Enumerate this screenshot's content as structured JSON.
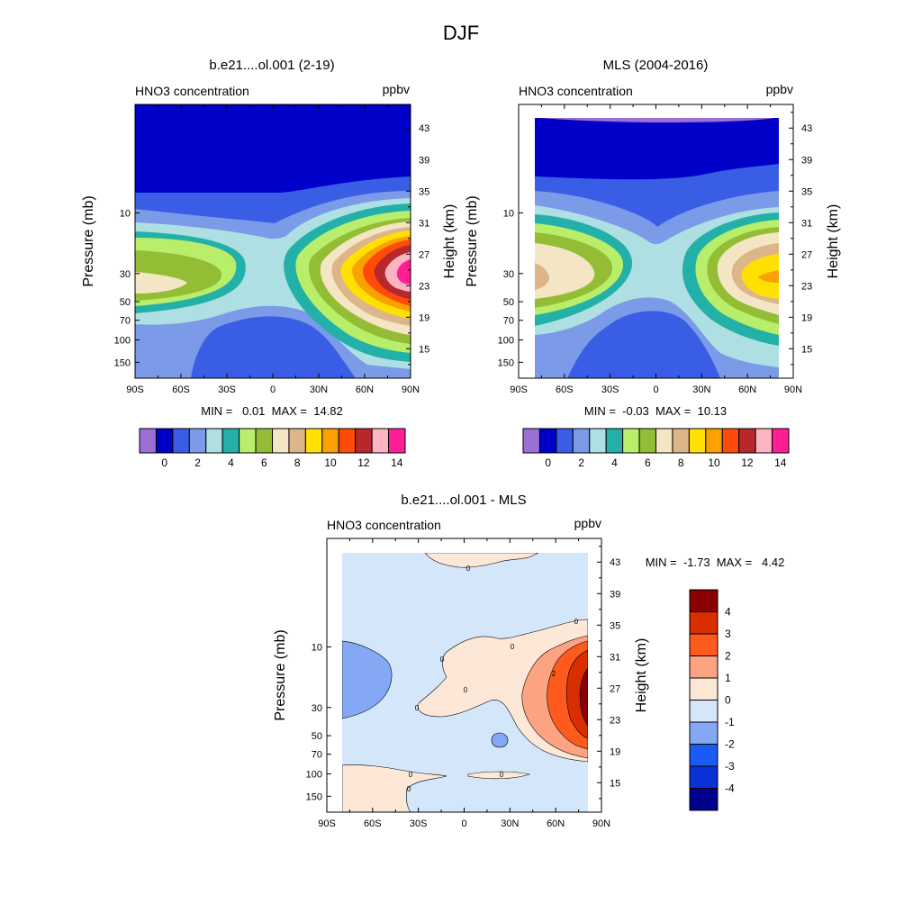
{
  "figure": {
    "title": "DJF"
  },
  "chart_data": [
    {
      "type": "heatmap",
      "title": "b.e21....ol.001 (2-19)",
      "left_label": "HNO3 concentration",
      "units": "ppbv",
      "ylabel": "Pressure (mb)",
      "ylabel_right": "Height (km)",
      "x_ticks": [
        "90S",
        "60S",
        "30S",
        "0",
        "30N",
        "60N",
        "90N"
      ],
      "y_ticks": [
        "10",
        "30",
        "50",
        "70",
        "100",
        "150"
      ],
      "y_ticks_right": [
        "43",
        "39",
        "35",
        "31",
        "27",
        "23",
        "19",
        "15"
      ],
      "stats": "MIN =   0.01  MAX =  14.82",
      "colorbar": {
        "labels": [
          "0",
          "2",
          "4",
          "6",
          "8",
          "10",
          "12",
          "14"
        ],
        "colors": [
          "#9b6fd6",
          "#0000c8",
          "#3a5de6",
          "#7b9be8",
          "#aee0e3",
          "#23b0a8",
          "#b9ee6a",
          "#93bd35",
          "#f4e5c4",
          "#dcb688",
          "#ffe000",
          "#f9a100",
          "#ff4b0a",
          "#b8282b",
          "#fcb4c3",
          "#ff1e96"
        ]
      },
      "bands": [
        {
          "level": 0,
          "color": "#0000c8"
        },
        {
          "level": 1,
          "color": "#3a5de6"
        },
        {
          "level": 2,
          "color": "#7b9be8"
        },
        {
          "level": 3,
          "color": "#aee0e3"
        },
        {
          "level": 4,
          "color": "#23b0a8"
        },
        {
          "level": 5,
          "color": "#b9ee6a"
        },
        {
          "level": 6,
          "color": "#93bd35"
        },
        {
          "level": 7,
          "color": "#f4e5c4"
        },
        {
          "level": 8,
          "color": "#dcb688"
        },
        {
          "level": 9,
          "color": "#ffe000"
        },
        {
          "level": 10,
          "color": "#f9a100"
        },
        {
          "level": 11,
          "color": "#ff4b0a"
        },
        {
          "level": 12,
          "color": "#b8282b"
        },
        {
          "level": 13,
          "color": "#fcb4c3"
        },
        {
          "level": 14,
          "color": "#ff1e96"
        }
      ]
    },
    {
      "type": "heatmap",
      "title": "MLS (2004-2016)",
      "left_label": "HNO3 concentration",
      "units": "ppbv",
      "ylabel": "Pressure (mb)",
      "ylabel_right": "Height (km)",
      "x_ticks": [
        "90S",
        "60S",
        "30S",
        "0",
        "30N",
        "60N",
        "90N"
      ],
      "y_ticks": [
        "10",
        "30",
        "50",
        "70",
        "100",
        "150"
      ],
      "y_ticks_right": [
        "43",
        "39",
        "35",
        "31",
        "27",
        "23",
        "19",
        "15"
      ],
      "stats": "MIN =  -0.03  MAX =  10.13",
      "colorbar": {
        "labels": [
          "0",
          "2",
          "4",
          "6",
          "8",
          "10",
          "12",
          "14"
        ],
        "colors": [
          "#9b6fd6",
          "#0000c8",
          "#3a5de6",
          "#7b9be8",
          "#aee0e3",
          "#23b0a8",
          "#b9ee6a",
          "#93bd35",
          "#f4e5c4",
          "#dcb688",
          "#ffe000",
          "#f9a100",
          "#ff4b0a",
          "#b8282b",
          "#fcb4c3",
          "#ff1e96"
        ]
      }
    },
    {
      "type": "heatmap",
      "title": "b.e21....ol.001 - MLS",
      "left_label": "HNO3 concentration",
      "units": "ppbv",
      "ylabel": "Pressure (mb)",
      "ylabel_right": "Height (km)",
      "x_ticks": [
        "90S",
        "60S",
        "30S",
        "0",
        "30N",
        "60N",
        "90N"
      ],
      "y_ticks": [
        "10",
        "30",
        "50",
        "70",
        "100",
        "150"
      ],
      "y_ticks_right": [
        "43",
        "39",
        "35",
        "31",
        "27",
        "23",
        "19",
        "15"
      ],
      "stats": "MIN =  -1.73  MAX =   4.42",
      "contour_labels": [
        "0",
        "0",
        "0",
        "0",
        "0",
        "0",
        "0",
        "0",
        "0",
        "2"
      ],
      "colorbar": {
        "labels": [
          "4",
          "3",
          "2",
          "1",
          "0",
          "-1",
          "-2",
          "-3",
          "-4"
        ],
        "colors": [
          "#8b0000",
          "#d92e00",
          "#ff5a1e",
          "#fca482",
          "#fde8d8",
          "#d4e6fa",
          "#85a8f4",
          "#1a5af5",
          "#0a32d7",
          "#00008c"
        ]
      }
    }
  ]
}
